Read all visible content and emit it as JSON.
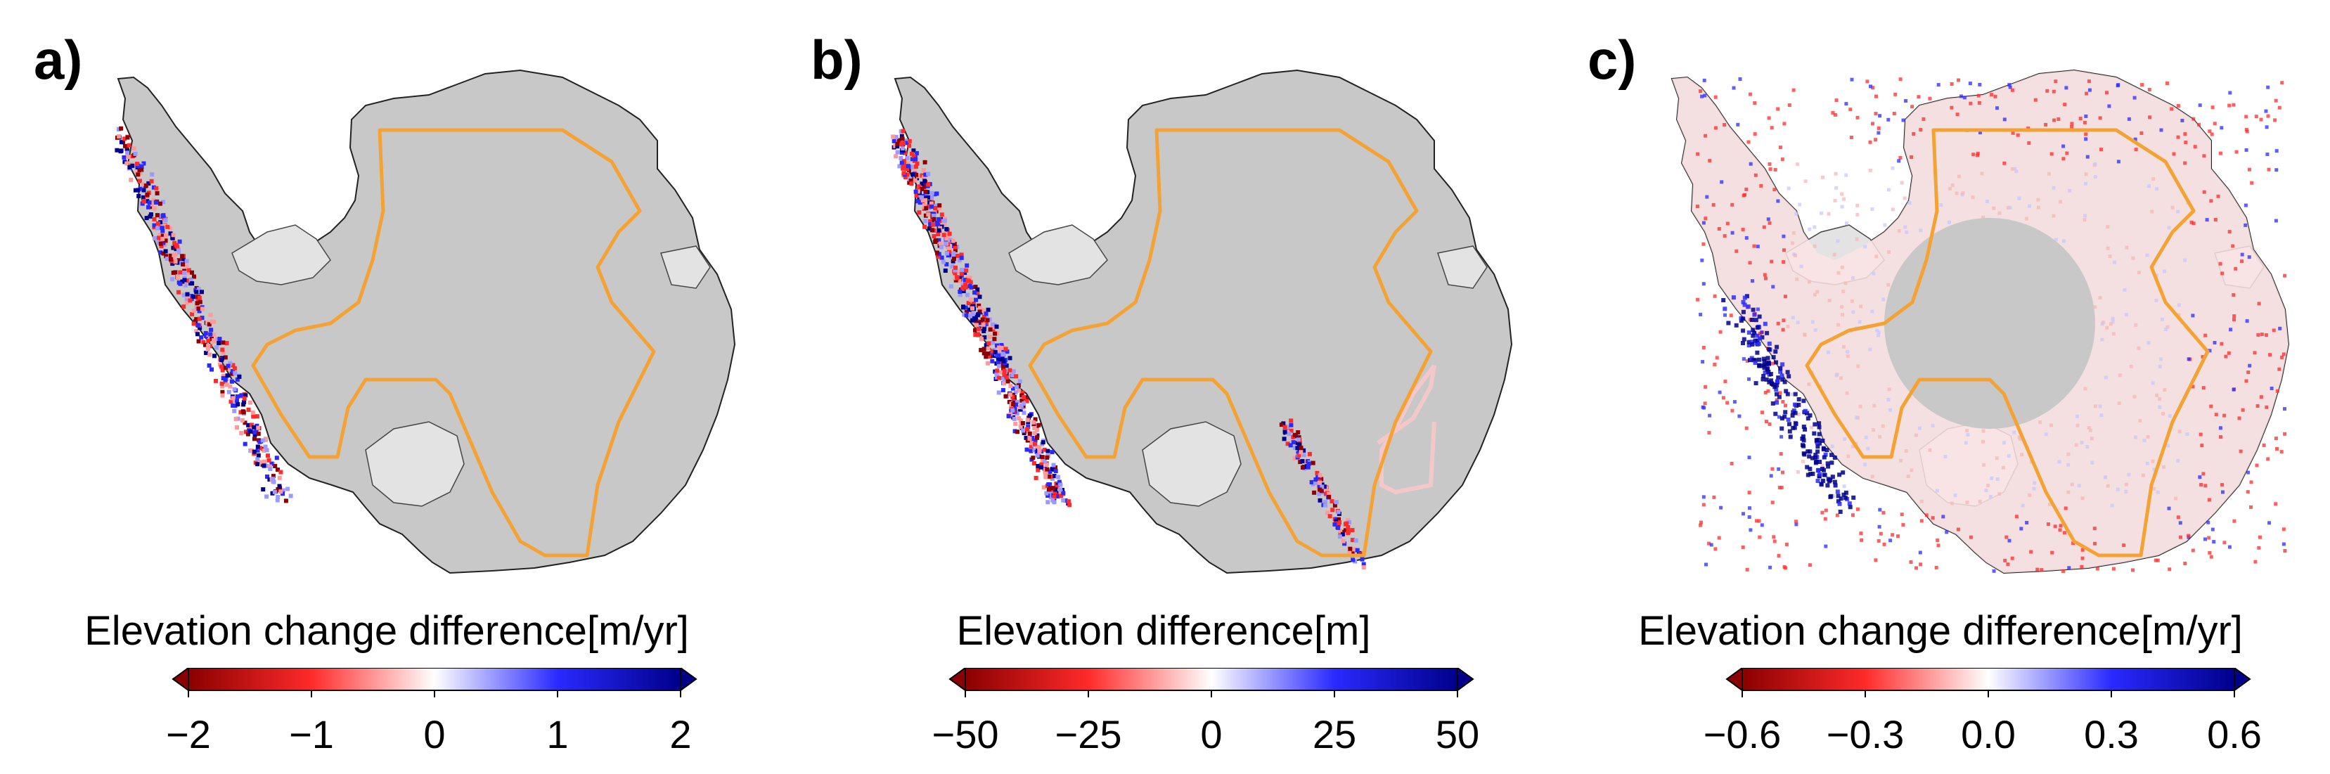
{
  "panels": [
    {
      "letter": "a)",
      "colorbar_title": "Elevation change difference[m/yr]",
      "ticks": [
        "−2",
        "−1",
        "0",
        "1",
        "2"
      ],
      "tick_values": [
        -2,
        -1,
        0,
        1,
        2
      ],
      "range": [
        -2,
        2
      ],
      "overlay": "coastal-peninsula"
    },
    {
      "letter": "b)",
      "colorbar_title": "Elevation difference[m]",
      "ticks": [
        "−50",
        "−25",
        "0",
        "25",
        "50"
      ],
      "tick_values": [
        -50,
        -25,
        0,
        25,
        50
      ],
      "range": [
        -50,
        50
      ],
      "overlay": "coastal-peninsula-dense"
    },
    {
      "letter": "c)",
      "colorbar_title": "Elevation change difference[m/yr]",
      "ticks": [
        "−0.6",
        "−0.3",
        "0.0",
        "0.3",
        "0.6"
      ],
      "tick_values": [
        -0.6,
        -0.3,
        0.0,
        0.3,
        0.6
      ],
      "range": [
        -0.6,
        0.6
      ],
      "overlay": "full-with-pole-hole"
    }
  ],
  "colors": {
    "land": "#c8c8c8",
    "ice_shelf": "#e3e3e3",
    "outline": "#f4a233",
    "neg": "#8b0000",
    "mid_neg": "#ff2a2a",
    "zero": "#ffffff",
    "mid_pos": "#2a2aff",
    "pos": "#00008b"
  }
}
